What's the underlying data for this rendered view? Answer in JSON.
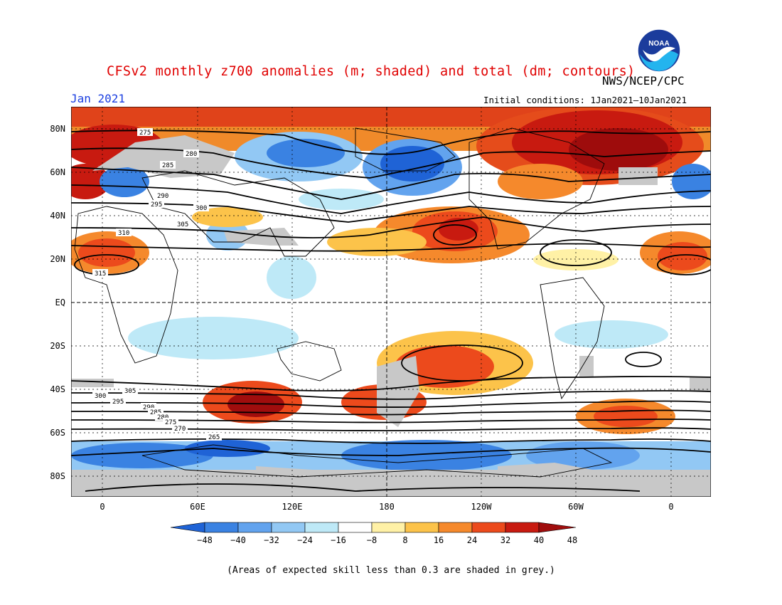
{
  "header": {
    "title": "CFSv2 monthly z700 anomalies (m; shaded) and total (dm; contours)",
    "organization": "NWS/NCEP/CPC",
    "period": "Jan 2021",
    "initial_conditions": "Initial conditions: 1Jan2021–10Jan2021",
    "logo": "NOAA"
  },
  "map": {
    "projection": "equirectangular",
    "lat_labels": [
      "80N",
      "60N",
      "40N",
      "20N",
      "EQ",
      "20S",
      "40S",
      "60S",
      "80S"
    ],
    "lon_labels": [
      "0",
      "60E",
      "120E",
      "180",
      "120W",
      "60W",
      "0"
    ],
    "grid_lines": "dotted",
    "contour_labels": [
      "275",
      "280",
      "285",
      "290",
      "295",
      "300",
      "305",
      "310",
      "315",
      "305",
      "300",
      "295",
      "290",
      "285",
      "280",
      "275",
      "270",
      "265"
    ]
  },
  "colorbar": {
    "tick_labels": [
      "-48",
      "-40",
      "-32",
      "-24",
      "-16",
      "-8",
      "8",
      "16",
      "24",
      "32",
      "40",
      "48"
    ],
    "colors": [
      "#1f63d6",
      "#3a82e2",
      "#62a3ee",
      "#92c8f4",
      "#bee9f7",
      "#ffffff",
      "#fff1a6",
      "#fcc34a",
      "#f5892c",
      "#ec4a1c",
      "#c81a10",
      "#a00d0d"
    ]
  },
  "footer": {
    "note": "(Areas of expected skill less than 0.3 are shaded in grey.)"
  },
  "icons": {
    "logo": "noaa-logo-icon"
  }
}
